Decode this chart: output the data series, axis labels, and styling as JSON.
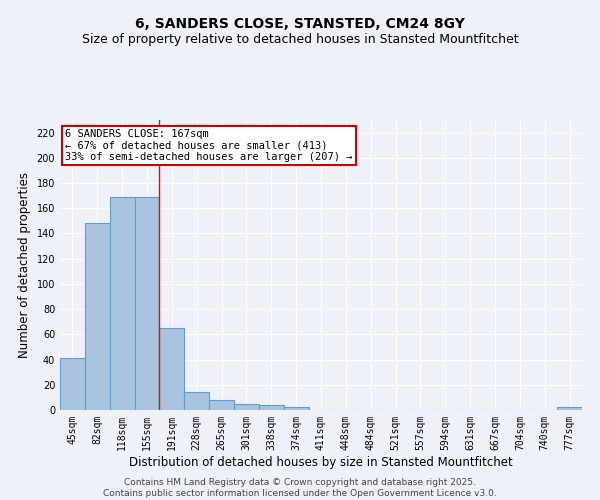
{
  "title": "6, SANDERS CLOSE, STANSTED, CM24 8GY",
  "subtitle": "Size of property relative to detached houses in Stansted Mountfitchet",
  "xlabel": "Distribution of detached houses by size in Stansted Mountfitchet",
  "ylabel": "Number of detached properties",
  "categories": [
    "45sqm",
    "82sqm",
    "118sqm",
    "155sqm",
    "191sqm",
    "228sqm",
    "265sqm",
    "301sqm",
    "338sqm",
    "374sqm",
    "411sqm",
    "448sqm",
    "484sqm",
    "521sqm",
    "557sqm",
    "594sqm",
    "631sqm",
    "667sqm",
    "704sqm",
    "740sqm",
    "777sqm"
  ],
  "values": [
    41,
    148,
    169,
    169,
    65,
    14,
    8,
    5,
    4,
    2,
    0,
    0,
    0,
    0,
    0,
    0,
    0,
    0,
    0,
    0,
    2
  ],
  "bar_color": "#aac4e0",
  "bar_edge_color": "#5a9fd4",
  "redline_index": 3.5,
  "annotation_text": "6 SANDERS CLOSE: 167sqm\n← 67% of detached houses are smaller (413)\n33% of semi-detached houses are larger (207) →",
  "annotation_box_color": "#ffffff",
  "annotation_box_edge": "#cc0000",
  "ylim": [
    0,
    230
  ],
  "yticks": [
    0,
    20,
    40,
    60,
    80,
    100,
    120,
    140,
    160,
    180,
    200,
    220
  ],
  "background_color": "#eef2f8",
  "grid_color": "#ffffff",
  "footer_text": "Contains HM Land Registry data © Crown copyright and database right 2025.\nContains public sector information licensed under the Open Government Licence v3.0.",
  "title_fontsize": 10,
  "subtitle_fontsize": 9,
  "xlabel_fontsize": 8.5,
  "ylabel_fontsize": 8.5,
  "tick_fontsize": 7,
  "annotation_fontsize": 7.5,
  "footer_fontsize": 6.5
}
